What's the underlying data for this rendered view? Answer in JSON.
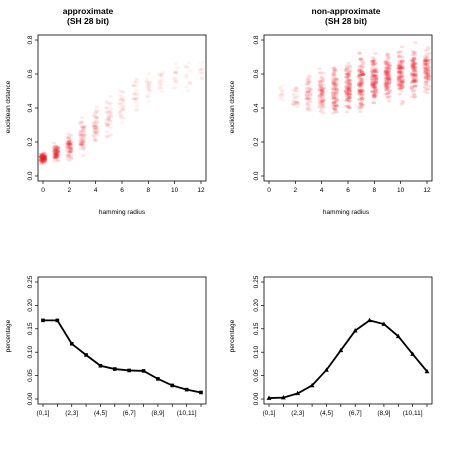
{
  "chart_data": [
    {
      "type": "scatter",
      "title": "approximate",
      "subtitle": "(SH 28 bit)",
      "xlabel": "hamming radius",
      "ylabel": "euclidean dstance",
      "xlim": [
        0,
        12
      ],
      "ylim": [
        0,
        0.8
      ],
      "xticks": [
        "0",
        "2",
        "4",
        "6",
        "8",
        "10",
        "12"
      ],
      "yticks": [
        "0.0",
        "0.2",
        "0.4",
        "0.6",
        "0.8"
      ],
      "point_color": "#e8202a",
      "series": [
        {
          "x": 0,
          "y_range": [
            0.06,
            0.15
          ],
          "density": 0.9
        },
        {
          "x": 1,
          "y_range": [
            0.07,
            0.2
          ],
          "density": 0.75
        },
        {
          "x": 2,
          "y_range": [
            0.08,
            0.27
          ],
          "density": 0.6
        },
        {
          "x": 3,
          "y_range": [
            0.1,
            0.36
          ],
          "density": 0.5
        },
        {
          "x": 4,
          "y_range": [
            0.13,
            0.44
          ],
          "density": 0.4
        },
        {
          "x": 5,
          "y_range": [
            0.18,
            0.52
          ],
          "density": 0.3
        },
        {
          "x": 6,
          "y_range": [
            0.25,
            0.58
          ],
          "density": 0.22
        },
        {
          "x": 7,
          "y_range": [
            0.33,
            0.62
          ],
          "density": 0.17
        },
        {
          "x": 8,
          "y_range": [
            0.4,
            0.66
          ],
          "density": 0.14
        },
        {
          "x": 9,
          "y_range": [
            0.44,
            0.68
          ],
          "density": 0.12
        },
        {
          "x": 10,
          "y_range": [
            0.47,
            0.7
          ],
          "density": 0.1
        },
        {
          "x": 11,
          "y_range": [
            0.48,
            0.71
          ],
          "density": 0.08
        },
        {
          "x": 12,
          "y_range": [
            0.5,
            0.72
          ],
          "density": 0.06
        }
      ]
    },
    {
      "type": "scatter",
      "title": "non-approximate",
      "subtitle": "(SH 28 bit)",
      "xlabel": "hamming radius",
      "ylabel": "euclidean dstance",
      "xlim": [
        0,
        12
      ],
      "ylim": [
        0,
        0.8
      ],
      "xticks": [
        "0",
        "2",
        "4",
        "6",
        "8",
        "10",
        "12"
      ],
      "yticks": [
        "0.0",
        "0.2",
        "0.4",
        "0.6",
        "0.8"
      ],
      "point_color": "#e8202a",
      "series": [
        {
          "x": 1,
          "y_range": [
            0.42,
            0.55
          ],
          "density": 0.08
        },
        {
          "x": 2,
          "y_range": [
            0.32,
            0.58
          ],
          "density": 0.22
        },
        {
          "x": 3,
          "y_range": [
            0.3,
            0.63
          ],
          "density": 0.45
        },
        {
          "x": 4,
          "y_range": [
            0.3,
            0.66
          ],
          "density": 0.65
        },
        {
          "x": 5,
          "y_range": [
            0.3,
            0.7
          ],
          "density": 0.8
        },
        {
          "x": 6,
          "y_range": [
            0.32,
            0.73
          ],
          "density": 0.9
        },
        {
          "x": 7,
          "y_range": [
            0.34,
            0.76
          ],
          "density": 0.95
        },
        {
          "x": 8,
          "y_range": [
            0.36,
            0.78
          ],
          "density": 0.97
        },
        {
          "x": 9,
          "y_range": [
            0.38,
            0.79
          ],
          "density": 0.95
        },
        {
          "x": 10,
          "y_range": [
            0.4,
            0.8
          ],
          "density": 0.92
        },
        {
          "x": 11,
          "y_range": [
            0.42,
            0.8
          ],
          "density": 0.88
        },
        {
          "x": 12,
          "y_range": [
            0.45,
            0.8
          ],
          "density": 0.8
        }
      ]
    },
    {
      "type": "line",
      "title": "",
      "xlabel": "",
      "ylabel": "percentage",
      "ylim": [
        0,
        0.25
      ],
      "yticks": [
        "0.00",
        "0.05",
        "0.10",
        "0.15",
        "0.20",
        "0.25"
      ],
      "categories": [
        "(0,1]",
        "(1,2]",
        "(2,3]",
        "(3,4]",
        "(4,5]",
        "(5,6]",
        "(6,7]",
        "(7,8]",
        "(8,9]",
        "(9,10]",
        "(10,11]",
        "(11,12]"
      ],
      "shown_category_labels": [
        "(0,1]",
        "(2,3]",
        "(4,5]",
        "(6,7]",
        "(8,9]",
        "(10,11]"
      ],
      "values": [
        0.168,
        0.168,
        0.118,
        0.094,
        0.071,
        0.064,
        0.061,
        0.06,
        0.043,
        0.029,
        0.02,
        0.014
      ]
    },
    {
      "type": "line",
      "title": "",
      "xlabel": "",
      "ylabel": "percentage",
      "ylim": [
        0,
        0.25
      ],
      "yticks": [
        "0.00",
        "0.05",
        "0.10",
        "0.15",
        "0.20",
        "0.25"
      ],
      "categories": [
        "(0,1]",
        "(1,2]",
        "(2,3]",
        "(3,4]",
        "(4,5]",
        "(5,6]",
        "(6,7]",
        "(7,8]",
        "(8,9]",
        "(9,10]",
        "(10,11]",
        "(11,12]"
      ],
      "shown_category_labels": [
        "(0,1]",
        "(2,3]",
        "(4,5]",
        "(6,7]",
        "(8,9]",
        "(10,11]"
      ],
      "values": [
        0.002,
        0.003,
        0.012,
        0.029,
        0.062,
        0.104,
        0.146,
        0.168,
        0.16,
        0.134,
        0.096,
        0.059
      ]
    }
  ]
}
